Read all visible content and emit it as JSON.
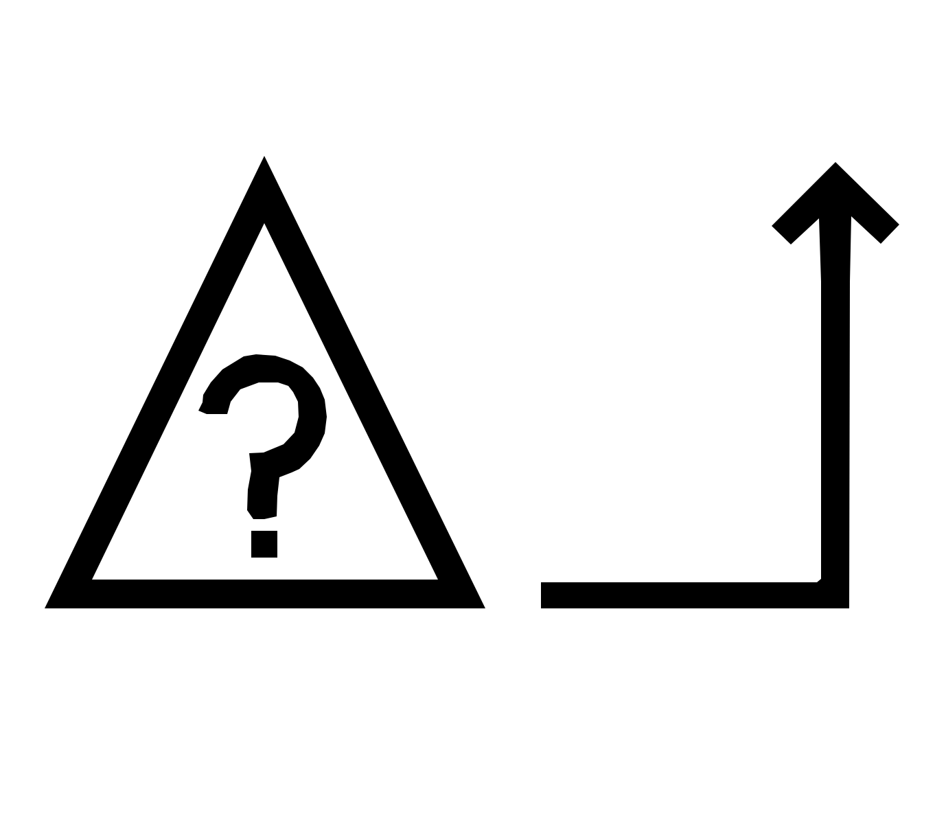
{
  "sign": {
    "symbol": "?",
    "icon": "warning-triangle-question-icon"
  },
  "arrow": {
    "icon": "turn-up-arrow-icon",
    "direction": "up"
  },
  "colors": {
    "ink": "#000000",
    "background": "#ffffff"
  }
}
